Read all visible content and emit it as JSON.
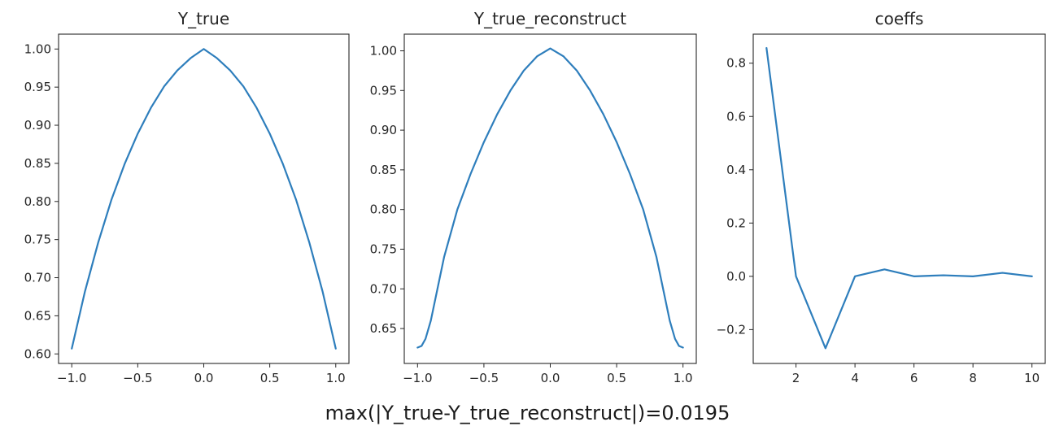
{
  "figure": {
    "suptitle": "max(|Y_true-Y_true_reconstruct|)=0.0195",
    "line_color": "#2e7ebc"
  },
  "chart_data": [
    {
      "type": "line",
      "title": "Y_true",
      "xlabel": "",
      "ylabel": "",
      "xlim": [
        -1.1,
        1.1
      ],
      "ylim": [
        0.5875,
        1.0195
      ],
      "xticks": [
        -1.0,
        -0.5,
        0.0,
        0.5,
        1.0
      ],
      "xtick_labels": [
        "−1.0",
        "−0.5",
        "0.0",
        "0.5",
        "1.0"
      ],
      "yticks": [
        0.6,
        0.65,
        0.7,
        0.75,
        0.8,
        0.85,
        0.9,
        0.95,
        1.0
      ],
      "ytick_labels": [
        "0.60",
        "0.65",
        "0.70",
        "0.75",
        "0.80",
        "0.85",
        "0.90",
        "0.95",
        "1.00"
      ],
      "grid": false,
      "series": [
        {
          "x": [
            -1.0,
            -0.9,
            -0.8,
            -0.7,
            -0.6,
            -0.5,
            -0.4,
            -0.3,
            -0.2,
            -0.1,
            0.0,
            0.1,
            0.2,
            0.3,
            0.4,
            0.5,
            0.6,
            0.7,
            0.8,
            0.9,
            1.0
          ],
          "y": [
            0.607,
            0.682,
            0.746,
            0.802,
            0.849,
            0.889,
            0.923,
            0.951,
            0.972,
            0.988,
            1.0,
            0.988,
            0.972,
            0.951,
            0.923,
            0.889,
            0.849,
            0.802,
            0.746,
            0.682,
            0.607
          ]
        }
      ]
    },
    {
      "type": "line",
      "title": "Y_true_reconstruct",
      "xlabel": "",
      "ylabel": "",
      "xlim": [
        -1.1,
        1.1
      ],
      "ylim": [
        0.606,
        1.021
      ],
      "xticks": [
        -1.0,
        -0.5,
        0.0,
        0.5,
        1.0
      ],
      "xtick_labels": [
        "−1.0",
        "−0.5",
        "0.0",
        "0.5",
        "1.0"
      ],
      "yticks": [
        0.65,
        0.7,
        0.75,
        0.8,
        0.85,
        0.9,
        0.95,
        1.0
      ],
      "ytick_labels": [
        "0.65",
        "0.70",
        "0.75",
        "0.80",
        "0.85",
        "0.90",
        "0.95",
        "1.00"
      ],
      "grid": false,
      "series": [
        {
          "x": [
            -1.0,
            -0.97,
            -0.94,
            -0.9,
            -0.85,
            -0.8,
            -0.7,
            -0.6,
            -0.5,
            -0.4,
            -0.3,
            -0.2,
            -0.1,
            0.0,
            0.1,
            0.2,
            0.3,
            0.4,
            0.5,
            0.6,
            0.7,
            0.8,
            0.85,
            0.9,
            0.94,
            0.97,
            1.0
          ],
          "y": [
            0.626,
            0.628,
            0.637,
            0.66,
            0.7,
            0.74,
            0.8,
            0.845,
            0.885,
            0.92,
            0.95,
            0.975,
            0.993,
            1.003,
            0.993,
            0.975,
            0.95,
            0.92,
            0.885,
            0.845,
            0.8,
            0.74,
            0.7,
            0.66,
            0.637,
            0.628,
            0.626
          ]
        }
      ]
    },
    {
      "type": "line",
      "title": "coeffs",
      "xlabel": "",
      "ylabel": "",
      "xlim": [
        0.55,
        10.45
      ],
      "ylim": [
        -0.327,
        0.909
      ],
      "xticks": [
        2,
        4,
        6,
        8,
        10
      ],
      "xtick_labels": [
        "2",
        "4",
        "6",
        "8",
        "10"
      ],
      "yticks": [
        -0.2,
        0.0,
        0.2,
        0.4,
        0.6,
        0.8
      ],
      "ytick_labels": [
        "−0.2",
        "0.0",
        "0.2",
        "0.4",
        "0.6",
        "0.8"
      ],
      "grid": false,
      "series": [
        {
          "x": [
            1,
            2,
            3,
            4,
            5,
            6,
            7,
            8,
            9,
            10
          ],
          "y": [
            0.857,
            0.0,
            -0.27,
            0.0,
            0.026,
            0.0,
            0.004,
            0.0,
            0.013,
            0.0
          ]
        }
      ]
    }
  ]
}
